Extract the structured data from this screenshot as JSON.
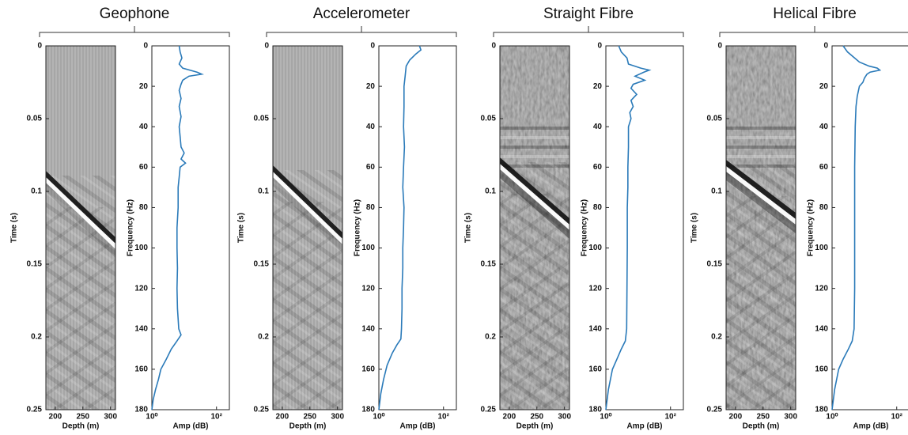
{
  "chart_data": [
    {
      "type": "image",
      "title": "Geophone",
      "xlabel": "Depth (m)",
      "ylabel": "Time (s)",
      "xlim": [
        183,
        309
      ],
      "xticks": [
        200,
        250,
        300
      ],
      "ylim": [
        0,
        0.25
      ],
      "yticks": [
        0,
        0.05,
        0.1,
        0.15,
        0.2,
        0.25
      ],
      "y_inverted": true
    },
    {
      "type": "line",
      "xlabel": "Amp (dB)",
      "ylabel": "Frequency (Hz)",
      "xlog": true,
      "xlim": [
        1,
        250
      ],
      "xticks": [
        {
          "value": 1,
          "label": "10⁰"
        },
        {
          "value": 100,
          "label": "10²"
        }
      ],
      "ylim": [
        0,
        180
      ],
      "yticks": [
        0,
        20,
        40,
        60,
        80,
        100,
        120,
        140,
        160,
        180
      ],
      "y_inverted": true,
      "color": "#2a7ab9",
      "frequency": [
        0,
        3,
        6,
        9,
        11,
        13,
        14,
        15,
        17,
        19,
        22,
        26,
        30,
        35,
        40,
        45,
        50,
        53,
        56,
        58,
        60,
        65,
        70,
        80,
        90,
        100,
        110,
        120,
        130,
        140,
        143,
        146,
        150,
        155,
        160,
        165,
        170,
        175,
        180
      ],
      "values": [
        7,
        7.5,
        8.5,
        7,
        9,
        25,
        35,
        14,
        9,
        8,
        7,
        8,
        7,
        8,
        7,
        7.5,
        8,
        10,
        8,
        11,
        7.5,
        7,
        6.5,
        6.5,
        6,
        6,
        6.2,
        6,
        6.2,
        6.8,
        8,
        6,
        4,
        2.8,
        1.9,
        1.6,
        1.3,
        1.1,
        1.0
      ]
    },
    {
      "type": "image",
      "title": "Accelerometer",
      "xlabel": "Depth (m)",
      "ylabel": "Time (s)",
      "xlim": [
        183,
        309
      ],
      "xticks": [
        200,
        250,
        300
      ],
      "ylim": [
        0,
        0.25
      ],
      "yticks": [
        0,
        0.05,
        0.1,
        0.15,
        0.2,
        0.25
      ],
      "y_inverted": true
    },
    {
      "type": "line",
      "xlabel": "Amp (dB)",
      "ylabel": "Frequency (Hz)",
      "xlog": true,
      "xlim": [
        1,
        250
      ],
      "xticks": [
        {
          "value": 1,
          "label": "10⁰"
        },
        {
          "value": 100,
          "label": "10²"
        }
      ],
      "ylim": [
        0,
        180
      ],
      "yticks": [
        0,
        20,
        40,
        60,
        80,
        100,
        120,
        140,
        160,
        180
      ],
      "y_inverted": true,
      "color": "#2a7ab9",
      "frequency": [
        0,
        2,
        4,
        7,
        10,
        15,
        20,
        30,
        40,
        50,
        60,
        70,
        80,
        90,
        100,
        110,
        120,
        130,
        140,
        145,
        148,
        152,
        158,
        165,
        172,
        180
      ],
      "values": [
        18,
        20,
        14,
        9,
        7,
        6.5,
        6,
        6,
        5.8,
        6.2,
        5.8,
        5.5,
        6,
        5.8,
        5.5,
        5.5,
        5.2,
        5.2,
        5,
        4.8,
        3.6,
        2.6,
        1.8,
        1.4,
        1.15,
        1.0
      ]
    },
    {
      "type": "image",
      "title": "Straight Fibre",
      "xlabel": "Depth (m)",
      "ylabel": "Time (s)",
      "xlim": [
        183,
        309
      ],
      "xticks": [
        200,
        250,
        300
      ],
      "ylim": [
        0,
        0.25
      ],
      "yticks": [
        0,
        0.05,
        0.1,
        0.15,
        0.2,
        0.25
      ],
      "y_inverted": true
    },
    {
      "type": "line",
      "xlabel": "Amp (dB)",
      "ylabel": "Frequency (Hz)",
      "xlog": true,
      "xlim": [
        1,
        250
      ],
      "xticks": [
        {
          "value": 1,
          "label": "10⁰"
        },
        {
          "value": 100,
          "label": "10²"
        }
      ],
      "ylim": [
        0,
        180
      ],
      "yticks": [
        0,
        20,
        40,
        60,
        80,
        100,
        120,
        140,
        160,
        180
      ],
      "y_inverted": true,
      "color": "#2a7ab9",
      "frequency": [
        0,
        3,
        6,
        9,
        11,
        12,
        13,
        15,
        17,
        19,
        21,
        24,
        27,
        30,
        33,
        36,
        40,
        50,
        60,
        70,
        80,
        100,
        120,
        140,
        146,
        150,
        155,
        160,
        170,
        180
      ],
      "values": [
        2.5,
        3,
        4.5,
        5,
        12,
        22,
        15,
        8,
        16,
        7,
        6,
        9,
        6,
        7,
        5.5,
        6,
        5,
        5,
        4.8,
        4.8,
        4.6,
        4.6,
        4.5,
        4.4,
        4,
        3,
        2.2,
        1.6,
        1.2,
        1.0
      ]
    },
    {
      "type": "image",
      "title": "Helical Fibre",
      "xlabel": "Depth (m)",
      "ylabel": "Time (s)",
      "xlim": [
        183,
        309
      ],
      "xticks": [
        200,
        250,
        300
      ],
      "ylim": [
        0,
        0.25
      ],
      "yticks": [
        0,
        0.05,
        0.1,
        0.15,
        0.2,
        0.25
      ],
      "y_inverted": true
    },
    {
      "type": "line",
      "xlabel": "Amp (dB)",
      "ylabel": "Frequency (Hz)",
      "xlog": true,
      "xlim": [
        1,
        250
      ],
      "xticks": [
        {
          "value": 1,
          "label": "10⁰"
        },
        {
          "value": 100,
          "label": "10²"
        }
      ],
      "ylim": [
        0,
        180
      ],
      "yticks": [
        0,
        20,
        40,
        60,
        80,
        100,
        120,
        140,
        160,
        180
      ],
      "y_inverted": true,
      "color": "#2a7ab9",
      "frequency": [
        0,
        3,
        6,
        8,
        10,
        11,
        12,
        13,
        14,
        16,
        18,
        20,
        25,
        30,
        40,
        60,
        80,
        100,
        120,
        140,
        146,
        150,
        155,
        160,
        170,
        180
      ],
      "values": [
        2.2,
        3,
        5,
        7,
        14,
        25,
        30,
        15,
        12,
        10,
        9,
        7,
        6,
        5.5,
        5.2,
        5,
        5,
        5,
        5,
        4.8,
        4.2,
        3.2,
        2.2,
        1.6,
        1.2,
        1.0
      ]
    }
  ]
}
